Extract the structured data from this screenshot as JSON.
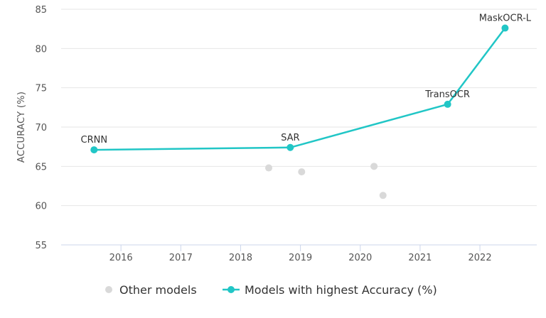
{
  "chart_data": {
    "type": "scatter",
    "ylabel": "ACCURACY (%)",
    "xlabel": "",
    "title": "",
    "xlim": [
      2015.0,
      2022.95
    ],
    "ylim": [
      55,
      85
    ],
    "x_ticks": [
      "2016",
      "2017",
      "2018",
      "2019",
      "2020",
      "2021",
      "2022"
    ],
    "y_ticks": [
      "55",
      "60",
      "65",
      "70",
      "75",
      "80",
      "85"
    ],
    "grid": "horizontal",
    "legend_position": "bottom",
    "series": [
      {
        "name": "Other models",
        "style": "points",
        "color": "#d9d9d9",
        "points": [
          {
            "x": 2018.47,
            "y": 64.8
          },
          {
            "x": 2019.02,
            "y": 64.3
          },
          {
            "x": 2020.23,
            "y": 65.0
          },
          {
            "x": 2020.38,
            "y": 61.3
          }
        ]
      },
      {
        "name": "Models with highest Accuracy (%)",
        "style": "line",
        "color": "#21c6c6",
        "points": [
          {
            "x": 2015.55,
            "y": 67.1,
            "label": "CRNN"
          },
          {
            "x": 2018.83,
            "y": 67.4,
            "label": "SAR"
          },
          {
            "x": 2021.46,
            "y": 72.9,
            "label": "TransOCR"
          },
          {
            "x": 2022.42,
            "y": 82.6,
            "label": "MaskOCR-L"
          }
        ]
      }
    ]
  }
}
